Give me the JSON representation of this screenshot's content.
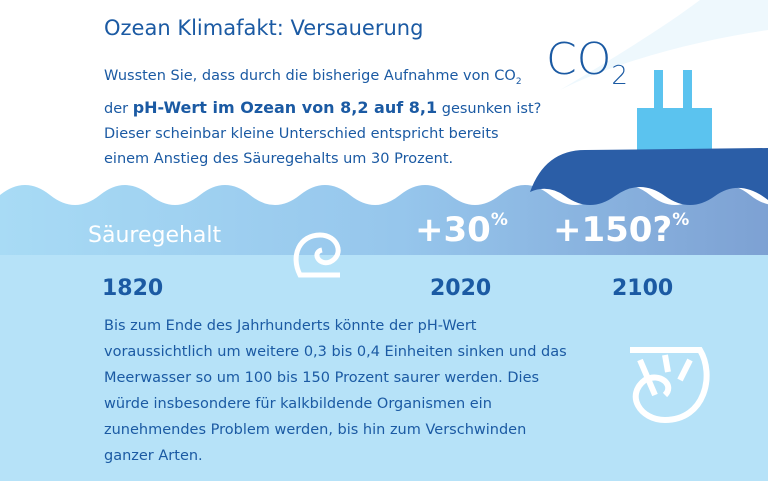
{
  "title": "Ozean Klimafakt: Versauerung",
  "co2_label": {
    "text": "CO",
    "sub": "2"
  },
  "intro": {
    "part1": "Wussten Sie, dass durch die bisherige Aufnahme von CO",
    "sub": "2",
    "part2": " der ",
    "bold": "pH-Wert im Ozean von 8,2 auf 8,1",
    "part3": " gesunken ist? Dieser scheinbar kleine Unterschied entspricht bereits einem Anstieg des Säuregehalts um 30 Prozent."
  },
  "band": {
    "label": "Säuregehalt",
    "increases": [
      {
        "text": "+30",
        "unit": "%"
      },
      {
        "text": "+150?",
        "unit": "%"
      }
    ]
  },
  "years": [
    "1820",
    "2020",
    "2100"
  ],
  "outro": "Bis zum Ende des Jahrhunderts könnte der pH-Wert voraussichtlich um weitere 0,3 bis 0,4 Einheiten sinken und das Meerwasser so um 100 bis 150 Prozent saurer werden. Dies würde insbesondere für kalkbildende Organismen ein zunehmendes Problem werden, bis hin zum Verschwinden ganzer Arten."
}
